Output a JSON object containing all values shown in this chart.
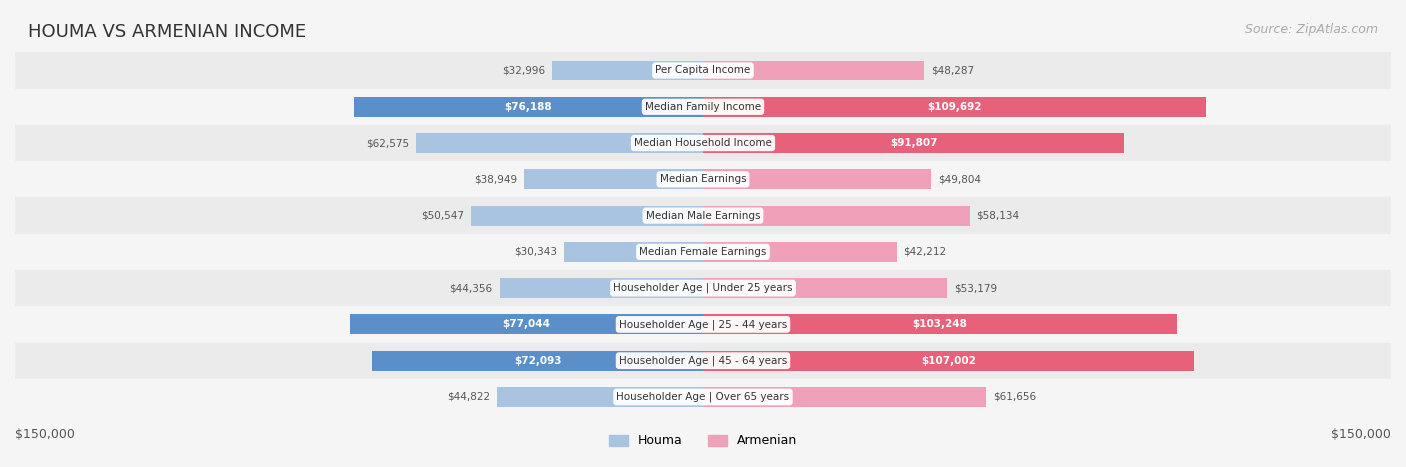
{
  "title": "HOUMA VS ARMENIAN INCOME",
  "source": "Source: ZipAtlas.com",
  "categories": [
    "Per Capita Income",
    "Median Family Income",
    "Median Household Income",
    "Median Earnings",
    "Median Male Earnings",
    "Median Female Earnings",
    "Householder Age | Under 25 years",
    "Householder Age | 25 - 44 years",
    "Householder Age | 45 - 64 years",
    "Householder Age | Over 65 years"
  ],
  "houma_values": [
    32996,
    76188,
    62575,
    38949,
    50547,
    30343,
    44356,
    77044,
    72093,
    44822
  ],
  "armenian_values": [
    48287,
    109692,
    91807,
    49804,
    58134,
    42212,
    53179,
    103248,
    107002,
    61656
  ],
  "houma_color_light": "#a8c4e0",
  "houma_color_dark": "#5b8fc9",
  "armenian_color_light": "#f0a0b8",
  "armenian_color_dark": "#e8617a",
  "max_value": 150000,
  "xlabel_left": "$150,000",
  "xlabel_right": "$150,000",
  "bar_height": 0.55,
  "bg_color": "#f5f5f5",
  "row_bg_light": "#f5f5f5",
  "row_bg_white": "#ffffff",
  "label_color_dark": "#333333",
  "label_color_white": "#ffffff"
}
